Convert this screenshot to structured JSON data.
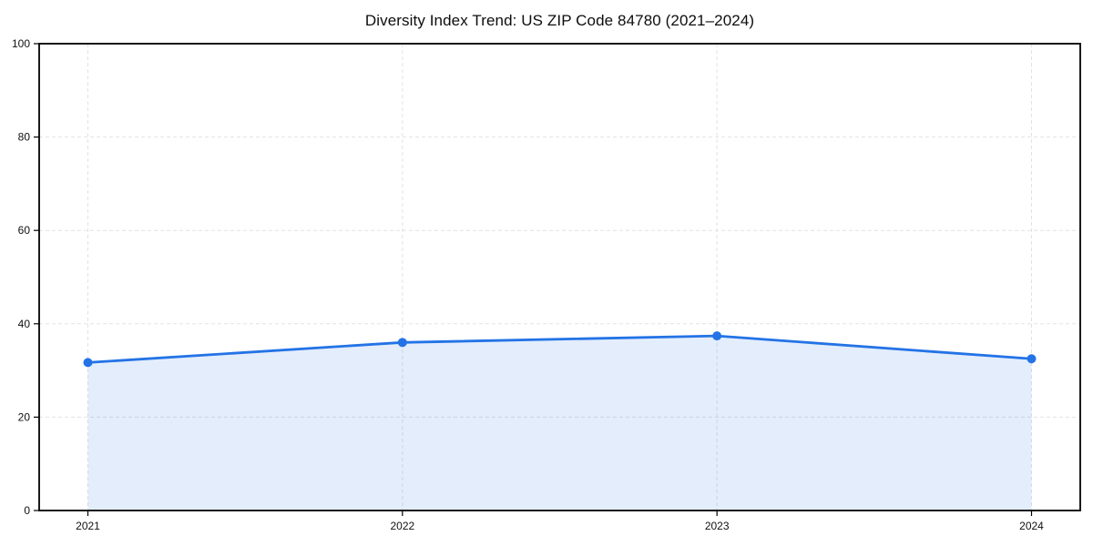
{
  "chart_data": {
    "type": "area",
    "title": "Diversity Index Trend: US ZIP Code 84780 (2021–2024)",
    "categories": [
      "2021",
      "2022",
      "2023",
      "2024"
    ],
    "series": [
      {
        "name": "Diversity Index",
        "values": [
          31.7,
          36.0,
          37.4,
          32.5
        ]
      }
    ],
    "xlabel": "",
    "ylabel": "",
    "ylim": [
      0,
      100
    ],
    "yticks": [
      0,
      20,
      40,
      60,
      80,
      100
    ],
    "grid": "dashed-both-axes",
    "legend_position": "none",
    "line_color": "#2373e6",
    "marker_color": "#2373e6",
    "fill_color": "rgba(35, 115, 230, 0.13)",
    "grid_color": "#e2e2e2",
    "spine_color": "#000000"
  }
}
